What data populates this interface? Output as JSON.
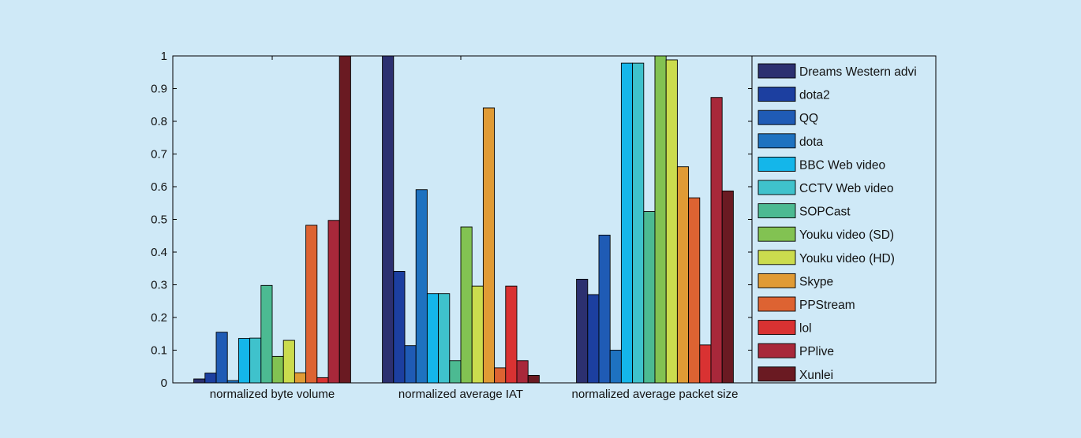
{
  "chart_data": {
    "type": "bar",
    "title": "",
    "xlabel": "",
    "ylabel": "",
    "ylim": [
      0,
      1
    ],
    "yticks": [
      "0",
      "0.1",
      "0.2",
      "0.3",
      "0.4",
      "0.5",
      "0.6",
      "0.7",
      "0.8",
      "0.9",
      "1"
    ],
    "grid": false,
    "legend_position": "right",
    "categories": [
      "normalized byte volume",
      "normalized average IAT",
      "normalized average packet size"
    ],
    "series": [
      {
        "name": "Dreams Western advi",
        "color": "#2c3070",
        "values": [
          0.012,
          1.0,
          0.317
        ]
      },
      {
        "name": "dota2",
        "color": "#1c3fa0",
        "values": [
          0.03,
          0.341,
          0.27
        ]
      },
      {
        "name": "QQ",
        "color": "#1f5bb5",
        "values": [
          0.155,
          0.114,
          0.452
        ]
      },
      {
        "name": "dota",
        "color": "#1e72c0",
        "values": [
          0.007,
          0.591,
          0.1
        ]
      },
      {
        "name": "BBC Web video",
        "color": "#14b6ea",
        "values": [
          0.136,
          0.273,
          0.978
        ]
      },
      {
        "name": "CCTV Web video",
        "color": "#3fc2cc",
        "values": [
          0.137,
          0.273,
          0.978
        ]
      },
      {
        "name": "SOPCast",
        "color": "#4cba92",
        "values": [
          0.298,
          0.068,
          0.524
        ]
      },
      {
        "name": "Youku video (SD)",
        "color": "#82c252",
        "values": [
          0.081,
          0.477,
          1.0
        ]
      },
      {
        "name": "Youku video (HD)",
        "color": "#cbdc4e",
        "values": [
          0.13,
          0.296,
          0.988
        ]
      },
      {
        "name": "Skype",
        "color": "#e09b35",
        "values": [
          0.031,
          0.841,
          0.661
        ]
      },
      {
        "name": "PPStream",
        "color": "#dd6332",
        "values": [
          0.482,
          0.046,
          0.566
        ]
      },
      {
        "name": "lol",
        "color": "#d93232",
        "values": [
          0.016,
          0.296,
          0.116
        ]
      },
      {
        "name": "PPlive",
        "color": "#a8283a",
        "values": [
          0.497,
          0.068,
          0.873
        ]
      },
      {
        "name": "Xunlei",
        "color": "#6a1a22",
        "values": [
          1.0,
          0.023,
          0.587
        ]
      }
    ]
  }
}
